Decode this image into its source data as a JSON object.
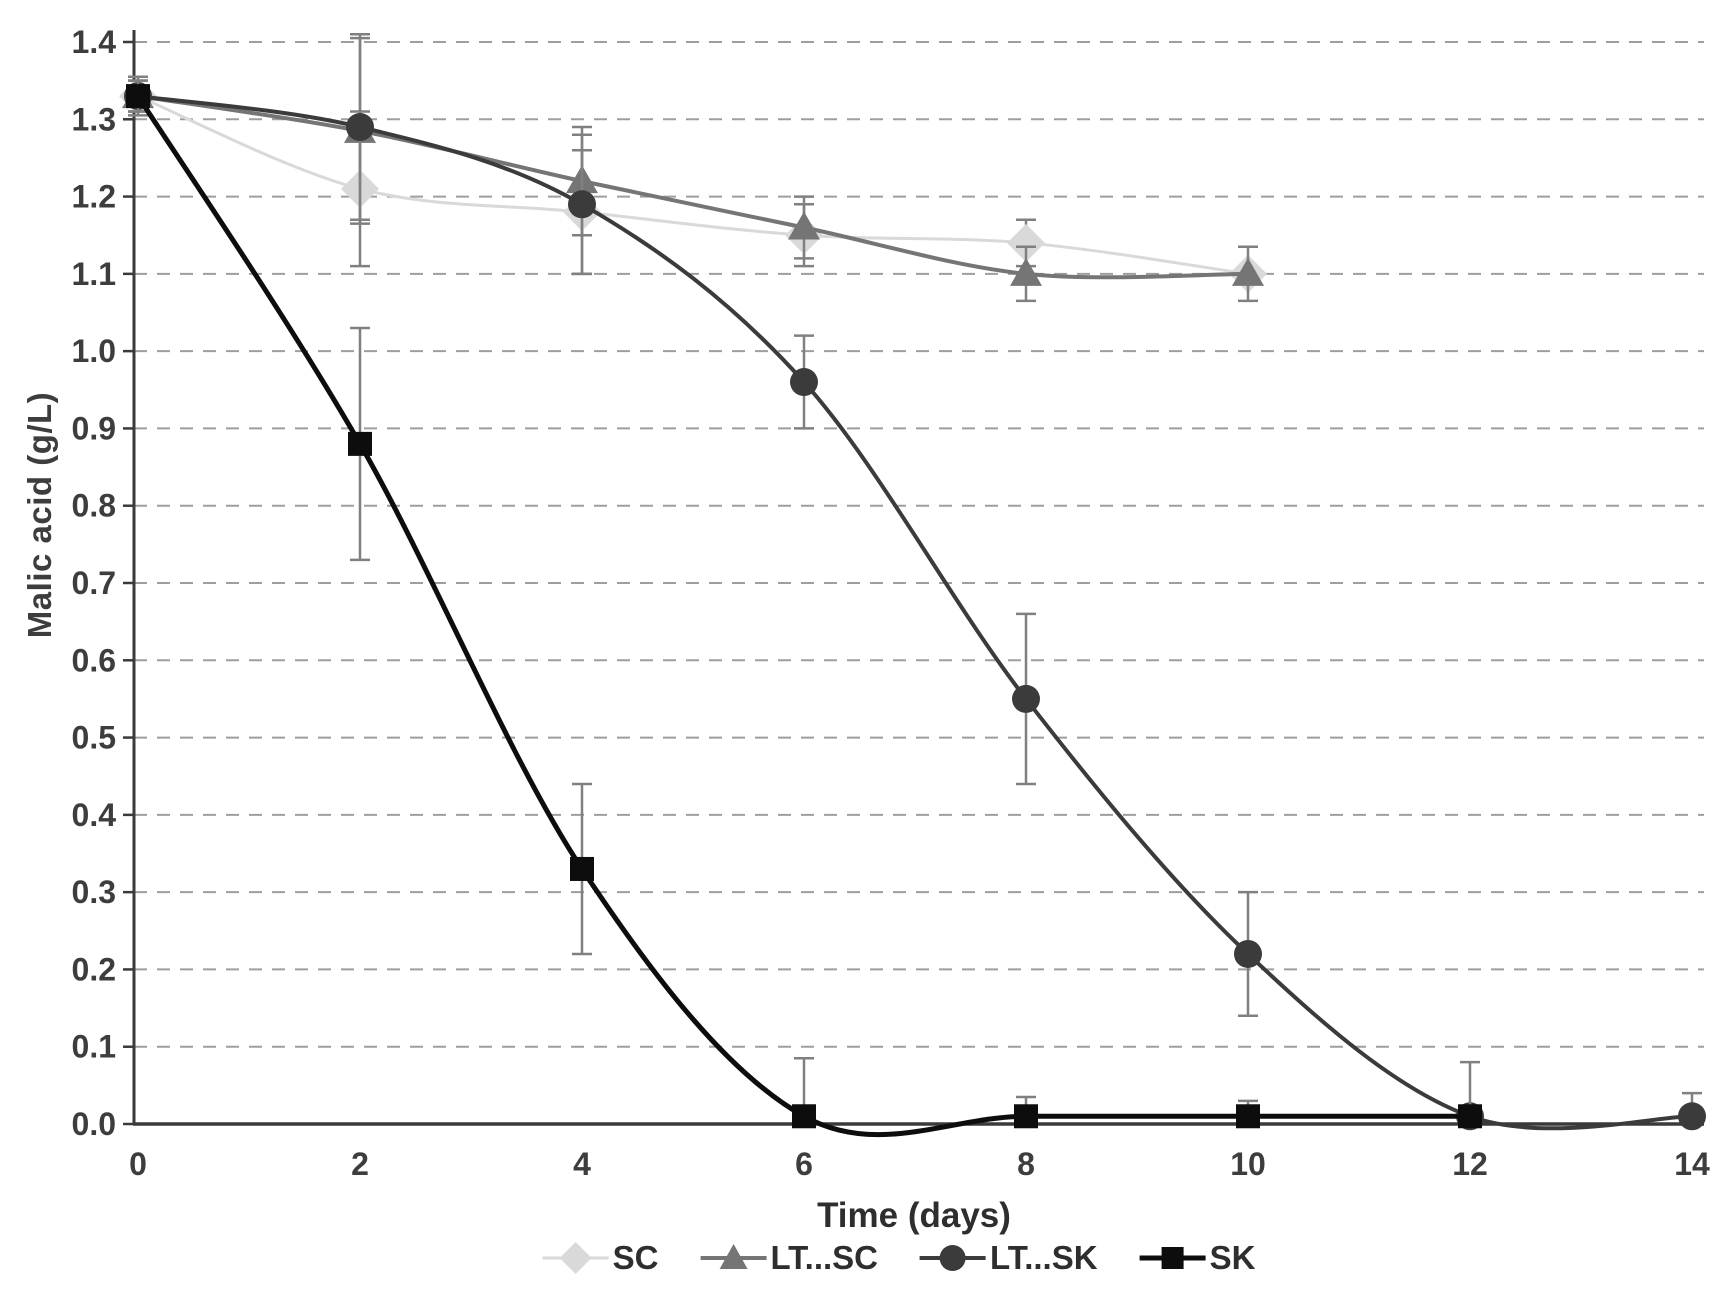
{
  "chart_data": {
    "type": "line",
    "title": "",
    "xlabel": "Time (days)",
    "ylabel": "Malic acid (g/L)",
    "x_ticks": [
      0,
      2,
      4,
      6,
      8,
      10,
      12,
      14
    ],
    "y_ticks": [
      0.0,
      0.1,
      0.2,
      0.3,
      0.4,
      0.5,
      0.6,
      0.7,
      0.8,
      0.9,
      1.0,
      1.1,
      1.2,
      1.3,
      1.4
    ],
    "xlim": [
      0,
      14
    ],
    "ylim": [
      0.0,
      1.4
    ],
    "grid": "horizontal-dashed",
    "legend_position": "bottom-center",
    "line_style": "smoothed",
    "gridline_color": "#9e9e9e",
    "axis_color": "#3a3a3a",
    "text_color": "#3d3d3d",
    "error_bar_color": "#808080",
    "series": [
      {
        "name": "SC",
        "marker": "diamond",
        "color": "#d9d9d9",
        "line_width": 3,
        "x": [
          0,
          2,
          4,
          6,
          8,
          10
        ],
        "y": [
          1.33,
          1.21,
          1.18,
          1.15,
          1.14,
          1.1
        ],
        "err_up": [
          0.02,
          0.1,
          0.08,
          0.04,
          0.03,
          0
        ],
        "err_down": [
          0.02,
          0.1,
          0.08,
          0.04,
          0.03,
          0
        ]
      },
      {
        "name": "LT...SC",
        "marker": "triangle",
        "color": "#757575",
        "line_width": 4,
        "x": [
          0,
          2,
          4,
          6,
          8,
          10
        ],
        "y": [
          1.33,
          1.285,
          1.22,
          1.16,
          1.1,
          1.1
        ],
        "err_up": [
          0.02,
          0.12,
          0.07,
          0.04,
          0.035,
          0.035
        ],
        "err_down": [
          0.02,
          0.12,
          0.07,
          0.04,
          0.035,
          0.035
        ]
      },
      {
        "name": "LT...SK",
        "marker": "circle",
        "color": "#3b3b3b",
        "line_width": 4,
        "x": [
          0,
          2,
          4,
          6,
          8,
          10,
          12,
          14
        ],
        "y": [
          1.33,
          1.29,
          1.19,
          0.96,
          0.55,
          0.22,
          0.01,
          0.01
        ],
        "err_up": [
          0.02,
          0.12,
          0.09,
          0.06,
          0.11,
          0.08,
          0,
          0.03
        ],
        "err_down": [
          0.02,
          0.12,
          0.09,
          0.06,
          0.11,
          0.08,
          0,
          0.01
        ]
      },
      {
        "name": "SK",
        "marker": "square",
        "color": "#0d0d0d",
        "line_width": 5,
        "x": [
          0,
          2,
          4,
          6,
          8,
          10,
          12
        ],
        "y": [
          1.33,
          0.88,
          0.33,
          0.01,
          0.01,
          0.01,
          0.01
        ],
        "err_up": [
          0.025,
          0.15,
          0.11,
          0.075,
          0.025,
          0.02,
          0.07
        ],
        "err_down": [
          0.025,
          0.15,
          0.11,
          0.01,
          0.01,
          0.01,
          0.01
        ]
      }
    ]
  }
}
